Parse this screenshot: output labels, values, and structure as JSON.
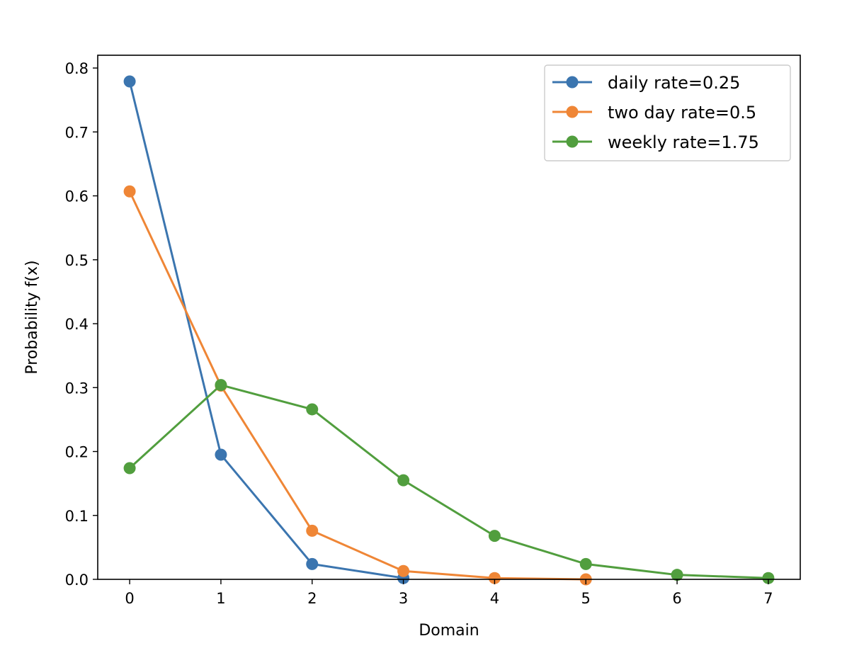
{
  "chart_data": {
    "type": "line",
    "title": "",
    "xlabel": "Domain",
    "ylabel": "Probability f(x)",
    "xlim": [
      -0.35,
      7.35
    ],
    "ylim": [
      0,
      0.82
    ],
    "xticks": [
      0,
      1,
      2,
      3,
      4,
      5,
      6,
      7
    ],
    "xtick_labels": [
      "0",
      "1",
      "2",
      "3",
      "4",
      "5",
      "6",
      "7"
    ],
    "yticks": [
      0.0,
      0.1,
      0.2,
      0.3,
      0.4,
      0.5,
      0.6,
      0.7,
      0.8
    ],
    "ytick_labels": [
      "0.0",
      "0.1",
      "0.2",
      "0.3",
      "0.4",
      "0.5",
      "0.6",
      "0.7",
      "0.8"
    ],
    "grid": false,
    "legend_position": "top-right",
    "series": [
      {
        "name": "daily rate=0.25",
        "color": "#3b75af",
        "marker": "circle",
        "x": [
          0,
          1,
          2,
          3
        ],
        "y": [
          0.779,
          0.195,
          0.024,
          0.002
        ]
      },
      {
        "name": "two day rate=0.5",
        "color": "#ef8636",
        "marker": "circle",
        "x": [
          0,
          1,
          2,
          3,
          4,
          5
        ],
        "y": [
          0.607,
          0.303,
          0.076,
          0.013,
          0.002,
          0.0
        ]
      },
      {
        "name": "weekly rate=1.75",
        "color": "#519e3e",
        "marker": "circle",
        "x": [
          0,
          1,
          2,
          3,
          4,
          5,
          6,
          7
        ],
        "y": [
          0.174,
          0.304,
          0.266,
          0.155,
          0.068,
          0.024,
          0.007,
          0.002
        ]
      }
    ]
  }
}
